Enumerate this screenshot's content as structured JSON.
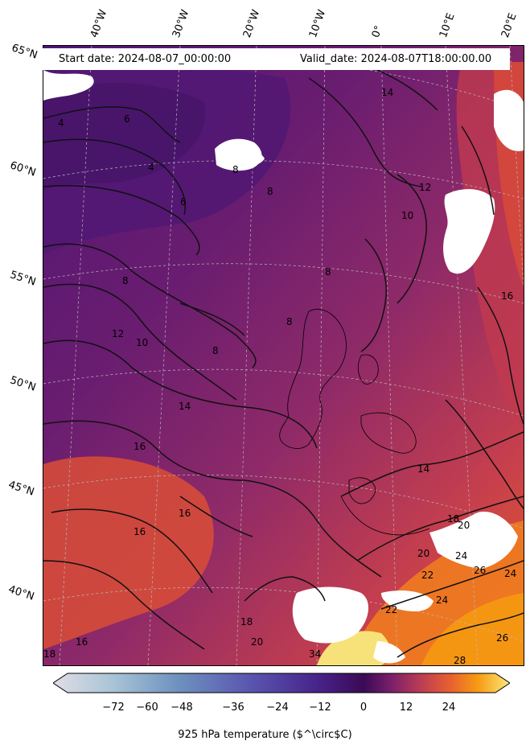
{
  "header": {
    "start_date": "Start date: 2024-08-07_00:00:00",
    "valid_date": "Valid_date: 2024-08-07T18:00:00.00"
  },
  "longitude_labels": [
    "40°W",
    "30°W",
    "20°W",
    "10°W",
    "0°",
    "10°E",
    "20°E"
  ],
  "latitude_labels": [
    "65°N",
    "60°N",
    "55°N",
    "50°N",
    "45°N",
    "40°N"
  ],
  "colorbar": {
    "colormap": "inferno-like (ice to fire)",
    "colors": [
      "#e0dde6",
      "#a9c4d6",
      "#6e93bf",
      "#5a56b0",
      "#47238a",
      "#3a0a55",
      "#7b1f6a",
      "#b83a57",
      "#e8602f",
      "#f79b13",
      "#fbe97a"
    ],
    "range": [
      -80,
      32
    ],
    "ticks": [
      "−72",
      "−60",
      "−48",
      "−36",
      "−24",
      "−12",
      "0",
      "12",
      "24"
    ],
    "label": "925 hPa temperature ($^\\circ$C)",
    "extend": "both"
  },
  "contour_labels": [
    "4",
    "6",
    "4",
    "6",
    "8",
    "8",
    "8",
    "8",
    "8",
    "8",
    "10",
    "10",
    "12",
    "12",
    "14",
    "14",
    "14",
    "16",
    "16",
    "16",
    "16",
    "16",
    "18",
    "18",
    "18",
    "20",
    "20",
    "20",
    "22",
    "22",
    "24",
    "24",
    "24",
    "26",
    "26",
    "28",
    "34"
  ]
}
